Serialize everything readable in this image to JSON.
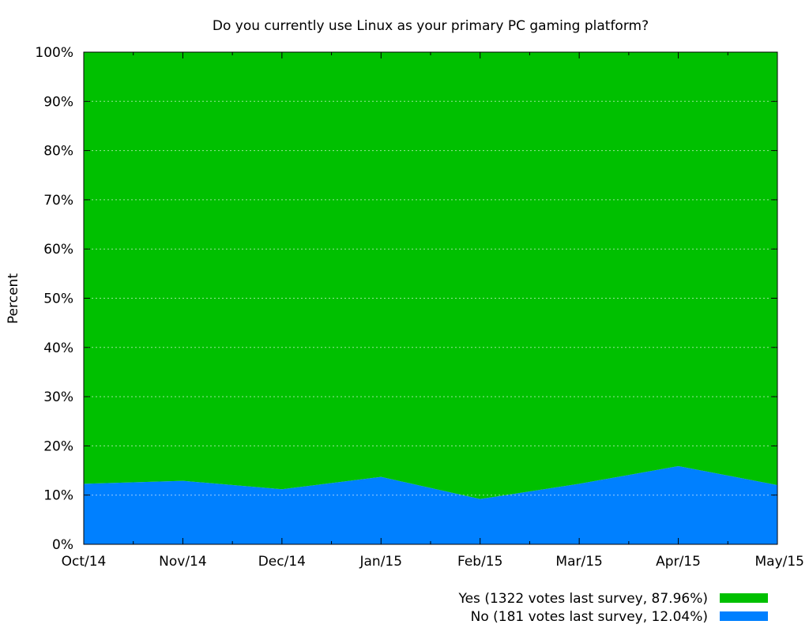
{
  "chart_data": {
    "type": "area",
    "stacked": true,
    "percent": true,
    "title": "Do you currently use Linux as your primary PC gaming platform?",
    "xlabel": "",
    "ylabel": "Percent",
    "ylim": [
      0,
      100
    ],
    "yticks": [
      "0%",
      "10%",
      "20%",
      "30%",
      "40%",
      "50%",
      "60%",
      "70%",
      "80%",
      "90%",
      "100%"
    ],
    "x": [
      "Oct/14",
      "Nov/14",
      "Dec/14",
      "Jan/15",
      "Feb/15",
      "Mar/15",
      "Apr/15",
      "May/15"
    ],
    "series": [
      {
        "name": "No (181 votes last survey, 12.04%)",
        "color": "#0080ff",
        "values": [
          12.3,
          12.9,
          11.2,
          13.7,
          9.2,
          12.3,
          15.9,
          12.04
        ]
      },
      {
        "name": "Yes (1322 votes last survey, 87.96%)",
        "color": "#00c000",
        "values": [
          87.7,
          87.1,
          88.8,
          86.3,
          90.8,
          87.7,
          84.1,
          87.96
        ]
      }
    ],
    "grid": true,
    "legend_position": "bottom-right"
  }
}
